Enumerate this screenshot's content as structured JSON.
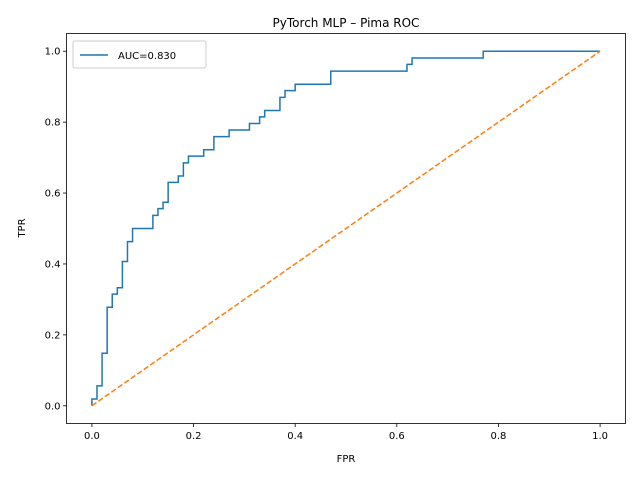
{
  "chart_data": {
    "type": "line",
    "title": "PyTorch MLP – Pima ROC",
    "xlabel": "FPR",
    "ylabel": "TPR",
    "xlim": [
      -0.05,
      1.05
    ],
    "ylim": [
      -0.05,
      1.05
    ],
    "xticks": [
      0.0,
      0.2,
      0.4,
      0.6,
      0.8,
      1.0
    ],
    "xtick_labels": [
      "0.0",
      "0.2",
      "0.4",
      "0.6",
      "0.8",
      "1.0"
    ],
    "yticks": [
      0.0,
      0.2,
      0.4,
      0.6,
      0.8,
      1.0
    ],
    "ytick_labels": [
      "0.0",
      "0.2",
      "0.4",
      "0.6",
      "0.8",
      "1.0"
    ],
    "grid": false,
    "legend_position": "upper-left",
    "series": [
      {
        "name": "AUC=0.830",
        "color": "#1f77b4",
        "style": "solid",
        "step": true,
        "points": [
          [
            0.0,
            0.0
          ],
          [
            0.0,
            0.019
          ],
          [
            0.01,
            0.019
          ],
          [
            0.01,
            0.056
          ],
          [
            0.02,
            0.056
          ],
          [
            0.02,
            0.148
          ],
          [
            0.03,
            0.148
          ],
          [
            0.03,
            0.278
          ],
          [
            0.04,
            0.278
          ],
          [
            0.04,
            0.315
          ],
          [
            0.05,
            0.315
          ],
          [
            0.05,
            0.333
          ],
          [
            0.06,
            0.333
          ],
          [
            0.06,
            0.407
          ],
          [
            0.07,
            0.407
          ],
          [
            0.07,
            0.463
          ],
          [
            0.08,
            0.463
          ],
          [
            0.08,
            0.5
          ],
          [
            0.12,
            0.5
          ],
          [
            0.12,
            0.537
          ],
          [
            0.13,
            0.537
          ],
          [
            0.13,
            0.556
          ],
          [
            0.14,
            0.556
          ],
          [
            0.14,
            0.574
          ],
          [
            0.15,
            0.574
          ],
          [
            0.15,
            0.63
          ],
          [
            0.17,
            0.63
          ],
          [
            0.17,
            0.648
          ],
          [
            0.18,
            0.648
          ],
          [
            0.18,
            0.685
          ],
          [
            0.19,
            0.685
          ],
          [
            0.19,
            0.704
          ],
          [
            0.22,
            0.704
          ],
          [
            0.22,
            0.722
          ],
          [
            0.24,
            0.722
          ],
          [
            0.24,
            0.759
          ],
          [
            0.27,
            0.759
          ],
          [
            0.27,
            0.778
          ],
          [
            0.31,
            0.778
          ],
          [
            0.31,
            0.796
          ],
          [
            0.33,
            0.796
          ],
          [
            0.33,
            0.815
          ],
          [
            0.34,
            0.815
          ],
          [
            0.34,
            0.833
          ],
          [
            0.37,
            0.833
          ],
          [
            0.37,
            0.87
          ],
          [
            0.38,
            0.87
          ],
          [
            0.38,
            0.889
          ],
          [
            0.4,
            0.889
          ],
          [
            0.4,
            0.907
          ],
          [
            0.47,
            0.907
          ],
          [
            0.47,
            0.944
          ],
          [
            0.62,
            0.944
          ],
          [
            0.62,
            0.963
          ],
          [
            0.63,
            0.963
          ],
          [
            0.63,
            0.981
          ],
          [
            0.77,
            0.981
          ],
          [
            0.77,
            1.0
          ],
          [
            1.0,
            1.0
          ]
        ]
      },
      {
        "name": "",
        "color": "#ff7f0e",
        "style": "dashed",
        "step": false,
        "points": [
          [
            0.0,
            0.0
          ],
          [
            1.0,
            1.0
          ]
        ]
      }
    ]
  }
}
